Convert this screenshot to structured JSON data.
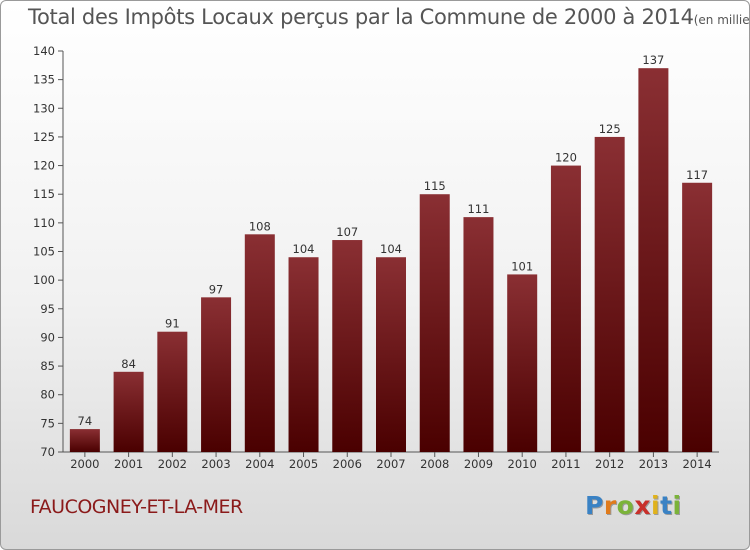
{
  "title": "Total des Impôts Locaux perçus par la Commune de 2000 à 2014",
  "title_unit": "(en milliers d'€)",
  "commune": "FAUCOGNEY-ET-LA-MER",
  "logo": {
    "letters": [
      "P",
      "r",
      "o",
      "x",
      "i",
      "t",
      "i"
    ],
    "colors": [
      "#3a82c4",
      "#e07b1c",
      "#7bb33a",
      "#c8302b",
      "#e0b21c",
      "#3a82c4",
      "#7bb33a"
    ]
  },
  "colors": {
    "bar_top": "#8a2f33",
    "bar_bottom": "#4a0000",
    "title": "#555555",
    "commune": "#8b1a1a"
  },
  "chart_data": {
    "type": "bar",
    "title": "Total des Impôts Locaux perçus par la Commune de 2000 à 2014",
    "xlabel": "",
    "ylabel": "",
    "categories": [
      "2000",
      "2001",
      "2002",
      "2003",
      "2004",
      "2005",
      "2006",
      "2007",
      "2008",
      "2009",
      "2010",
      "2011",
      "2012",
      "2013",
      "2014"
    ],
    "values": [
      74,
      84,
      91,
      97,
      108,
      104,
      107,
      104,
      115,
      111,
      101,
      120,
      125,
      137,
      117
    ],
    "ylim": [
      70,
      140
    ],
    "yticks": [
      70,
      75,
      80,
      85,
      90,
      95,
      100,
      105,
      110,
      115,
      120,
      125,
      130,
      135,
      140
    ],
    "grid": false
  }
}
